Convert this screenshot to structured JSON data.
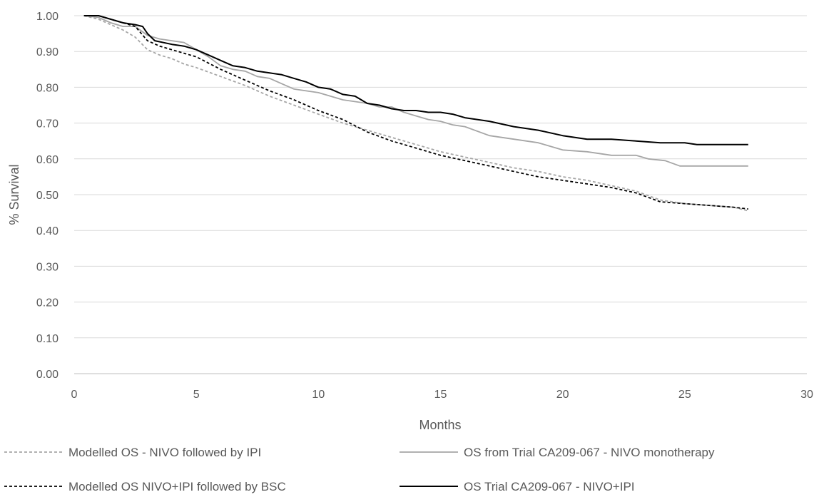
{
  "chart_data": {
    "type": "line",
    "title": "",
    "xlabel": "Months",
    "ylabel": "% Survival",
    "xlim": [
      0,
      30
    ],
    "ylim": [
      0,
      1
    ],
    "xticks": [
      0,
      5,
      10,
      15,
      20,
      25,
      30
    ],
    "xtick_labels": [
      "0",
      "5",
      "10",
      "15",
      "20",
      "25",
      "30"
    ],
    "yticks": [
      0,
      0.1,
      0.2,
      0.3,
      0.4,
      0.5,
      0.6,
      0.7,
      0.8,
      0.9,
      1.0
    ],
    "ytick_labels": [
      "0.00",
      "0.10",
      "0.20",
      "0.30",
      "0.40",
      "0.50",
      "0.60",
      "0.70",
      "0.80",
      "0.90",
      "1.00"
    ],
    "grid": "horizontal",
    "legend_position": "bottom",
    "series": [
      {
        "name": "Modelled OS - NIVO followed by IPI",
        "color": "#a6a6a6",
        "dash": "dashed",
        "points": [
          [
            0.4,
            1.0
          ],
          [
            1,
            0.99
          ],
          [
            1.5,
            0.975
          ],
          [
            2,
            0.96
          ],
          [
            2.5,
            0.94
          ],
          [
            3,
            0.905
          ],
          [
            3.5,
            0.89
          ],
          [
            4,
            0.88
          ],
          [
            4.5,
            0.865
          ],
          [
            5,
            0.855
          ],
          [
            6,
            0.83
          ],
          [
            7,
            0.805
          ],
          [
            8,
            0.775
          ],
          [
            9,
            0.75
          ],
          [
            10,
            0.725
          ],
          [
            11,
            0.7
          ],
          [
            12,
            0.68
          ],
          [
            13,
            0.66
          ],
          [
            14,
            0.64
          ],
          [
            15,
            0.62
          ],
          [
            16,
            0.605
          ],
          [
            17,
            0.59
          ],
          [
            18,
            0.575
          ],
          [
            19,
            0.565
          ],
          [
            20,
            0.55
          ],
          [
            21,
            0.54
          ],
          [
            22,
            0.525
          ],
          [
            23,
            0.51
          ],
          [
            24,
            0.485
          ],
          [
            25,
            0.475
          ],
          [
            26,
            0.47
          ],
          [
            27,
            0.465
          ],
          [
            27.6,
            0.455
          ]
        ]
      },
      {
        "name": "OS from Trial CA209-067 - NIVO monotherapy",
        "color": "#a6a6a6",
        "dash": "solid",
        "points": [
          [
            0.4,
            1.0
          ],
          [
            1,
            0.995
          ],
          [
            1.5,
            0.98
          ],
          [
            2,
            0.97
          ],
          [
            2.5,
            0.97
          ],
          [
            3,
            0.945
          ],
          [
            3.5,
            0.935
          ],
          [
            4,
            0.93
          ],
          [
            4.5,
            0.925
          ],
          [
            5,
            0.905
          ],
          [
            5.5,
            0.885
          ],
          [
            6,
            0.86
          ],
          [
            6.5,
            0.85
          ],
          [
            7,
            0.845
          ],
          [
            7.5,
            0.83
          ],
          [
            8,
            0.825
          ],
          [
            8.5,
            0.81
          ],
          [
            9,
            0.795
          ],
          [
            10,
            0.785
          ],
          [
            11,
            0.765
          ],
          [
            12,
            0.755
          ],
          [
            12.5,
            0.745
          ],
          [
            13,
            0.745
          ],
          [
            13.5,
            0.73
          ],
          [
            14,
            0.72
          ],
          [
            14.5,
            0.71
          ],
          [
            15,
            0.705
          ],
          [
            15.5,
            0.695
          ],
          [
            16,
            0.69
          ],
          [
            17,
            0.665
          ],
          [
            18,
            0.655
          ],
          [
            19,
            0.645
          ],
          [
            20,
            0.625
          ],
          [
            21,
            0.62
          ],
          [
            22,
            0.61
          ],
          [
            23,
            0.61
          ],
          [
            23.5,
            0.6
          ],
          [
            24.2,
            0.595
          ],
          [
            24.8,
            0.58
          ],
          [
            27.6,
            0.58
          ]
        ]
      },
      {
        "name": "Modelled OS NIVO+IPI followed by BSC",
        "color": "#000000",
        "dash": "dashed",
        "points": [
          [
            0.4,
            1.0
          ],
          [
            1,
            1.0
          ],
          [
            1.5,
            0.99
          ],
          [
            2,
            0.98
          ],
          [
            2.5,
            0.97
          ],
          [
            3,
            0.93
          ],
          [
            3.5,
            0.915
          ],
          [
            4,
            0.905
          ],
          [
            5,
            0.885
          ],
          [
            6,
            0.85
          ],
          [
            7,
            0.82
          ],
          [
            8,
            0.79
          ],
          [
            9,
            0.765
          ],
          [
            10,
            0.735
          ],
          [
            11,
            0.71
          ],
          [
            12,
            0.675
          ],
          [
            13,
            0.65
          ],
          [
            14,
            0.63
          ],
          [
            15,
            0.61
          ],
          [
            16,
            0.595
          ],
          [
            17,
            0.58
          ],
          [
            18,
            0.565
          ],
          [
            19,
            0.55
          ],
          [
            20,
            0.54
          ],
          [
            21,
            0.53
          ],
          [
            22,
            0.52
          ],
          [
            23,
            0.505
          ],
          [
            24,
            0.48
          ],
          [
            25,
            0.475
          ],
          [
            26,
            0.47
          ],
          [
            27,
            0.465
          ],
          [
            27.6,
            0.46
          ]
        ]
      },
      {
        "name": "OS Trial CA209-067 - NIVO+IPI",
        "color": "#000000",
        "dash": "solid",
        "points": [
          [
            0.4,
            1.0
          ],
          [
            1,
            1.0
          ],
          [
            1.5,
            0.99
          ],
          [
            2,
            0.98
          ],
          [
            2.5,
            0.975
          ],
          [
            2.8,
            0.97
          ],
          [
            3,
            0.95
          ],
          [
            3.3,
            0.93
          ],
          [
            4,
            0.92
          ],
          [
            4.5,
            0.915
          ],
          [
            5,
            0.905
          ],
          [
            5.5,
            0.89
          ],
          [
            6,
            0.875
          ],
          [
            6.5,
            0.86
          ],
          [
            7,
            0.855
          ],
          [
            7.5,
            0.845
          ],
          [
            8,
            0.84
          ],
          [
            8.5,
            0.835
          ],
          [
            9,
            0.825
          ],
          [
            9.5,
            0.815
          ],
          [
            10,
            0.8
          ],
          [
            10.5,
            0.795
          ],
          [
            11,
            0.78
          ],
          [
            11.5,
            0.775
          ],
          [
            12,
            0.755
          ],
          [
            12.5,
            0.75
          ],
          [
            13,
            0.74
          ],
          [
            13.5,
            0.735
          ],
          [
            14,
            0.735
          ],
          [
            14.5,
            0.73
          ],
          [
            15,
            0.73
          ],
          [
            15.5,
            0.725
          ],
          [
            16,
            0.715
          ],
          [
            17,
            0.705
          ],
          [
            18,
            0.69
          ],
          [
            19,
            0.68
          ],
          [
            20,
            0.665
          ],
          [
            21,
            0.655
          ],
          [
            22,
            0.655
          ],
          [
            23,
            0.65
          ],
          [
            24,
            0.645
          ],
          [
            25,
            0.645
          ],
          [
            25.5,
            0.64
          ],
          [
            27.6,
            0.64
          ]
        ]
      }
    ]
  }
}
